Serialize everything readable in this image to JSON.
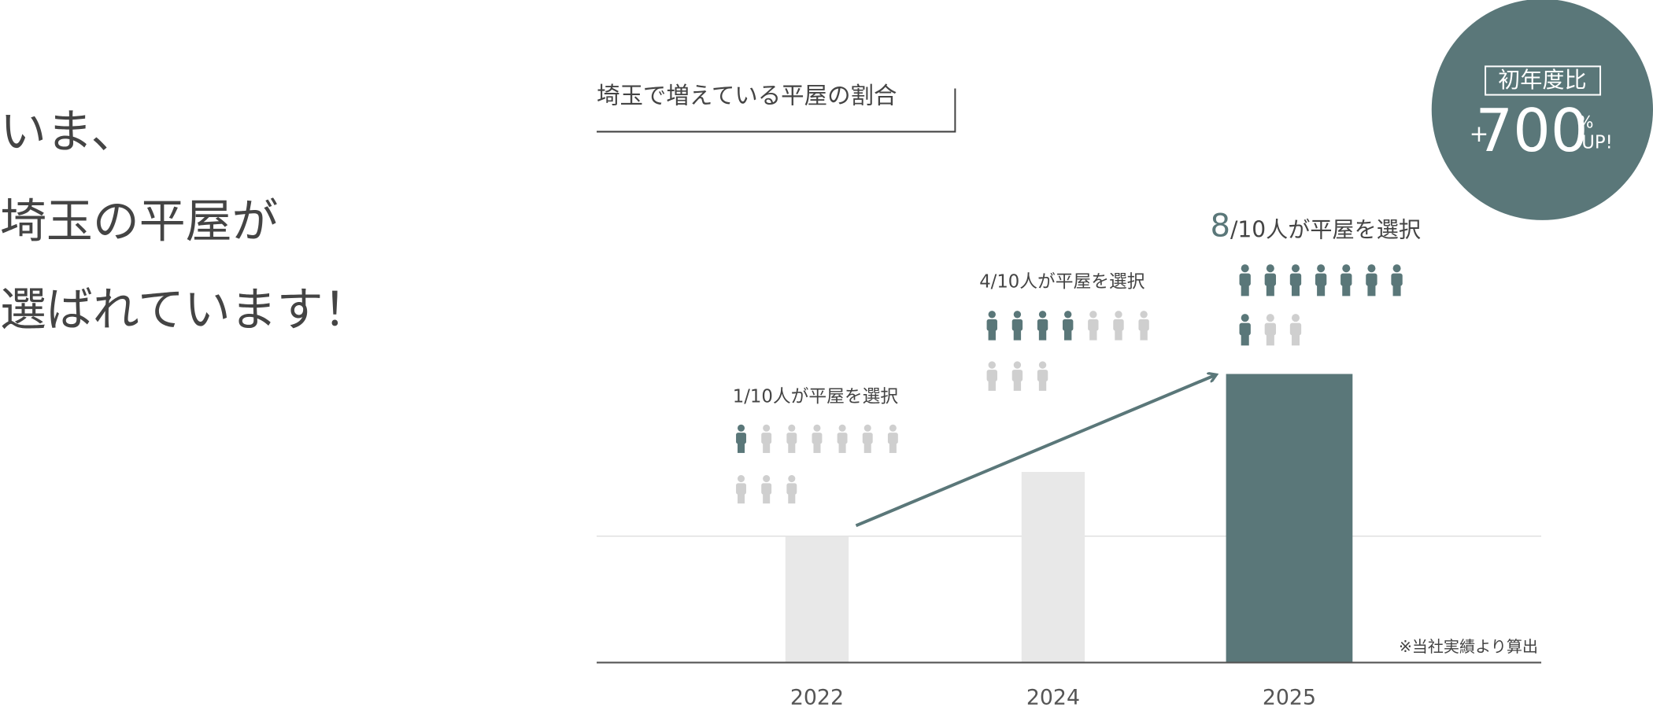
{
  "headline": [
    "いま、",
    "埼玉の平屋が",
    "選ばれています！"
  ],
  "badge": {
    "label": "初年度比",
    "sign": "+",
    "value": 700,
    "unit": "%",
    "suffix": "UP!"
  },
  "chart_data": {
    "type": "bar",
    "title": "埼玉で増えている平屋の割合",
    "categories": [
      "2022",
      "2024",
      "2025"
    ],
    "values": [
      120,
      181,
      274
    ],
    "colors": [
      "#e8e8e8",
      "#e8e8e8",
      "#5a7779"
    ],
    "ylim": [
      0,
      300
    ],
    "note": "※当社実績より算出",
    "groups": [
      {
        "label": "1/10人が平屋を選択",
        "highlighted": 1,
        "total": 10
      },
      {
        "label": "4/10人が平屋を選択",
        "highlighted": 4,
        "total": 10
      },
      {
        "emphasis": "8",
        "label": "/10人が平屋を選択",
        "highlighted": 8,
        "total": 10
      }
    ]
  }
}
